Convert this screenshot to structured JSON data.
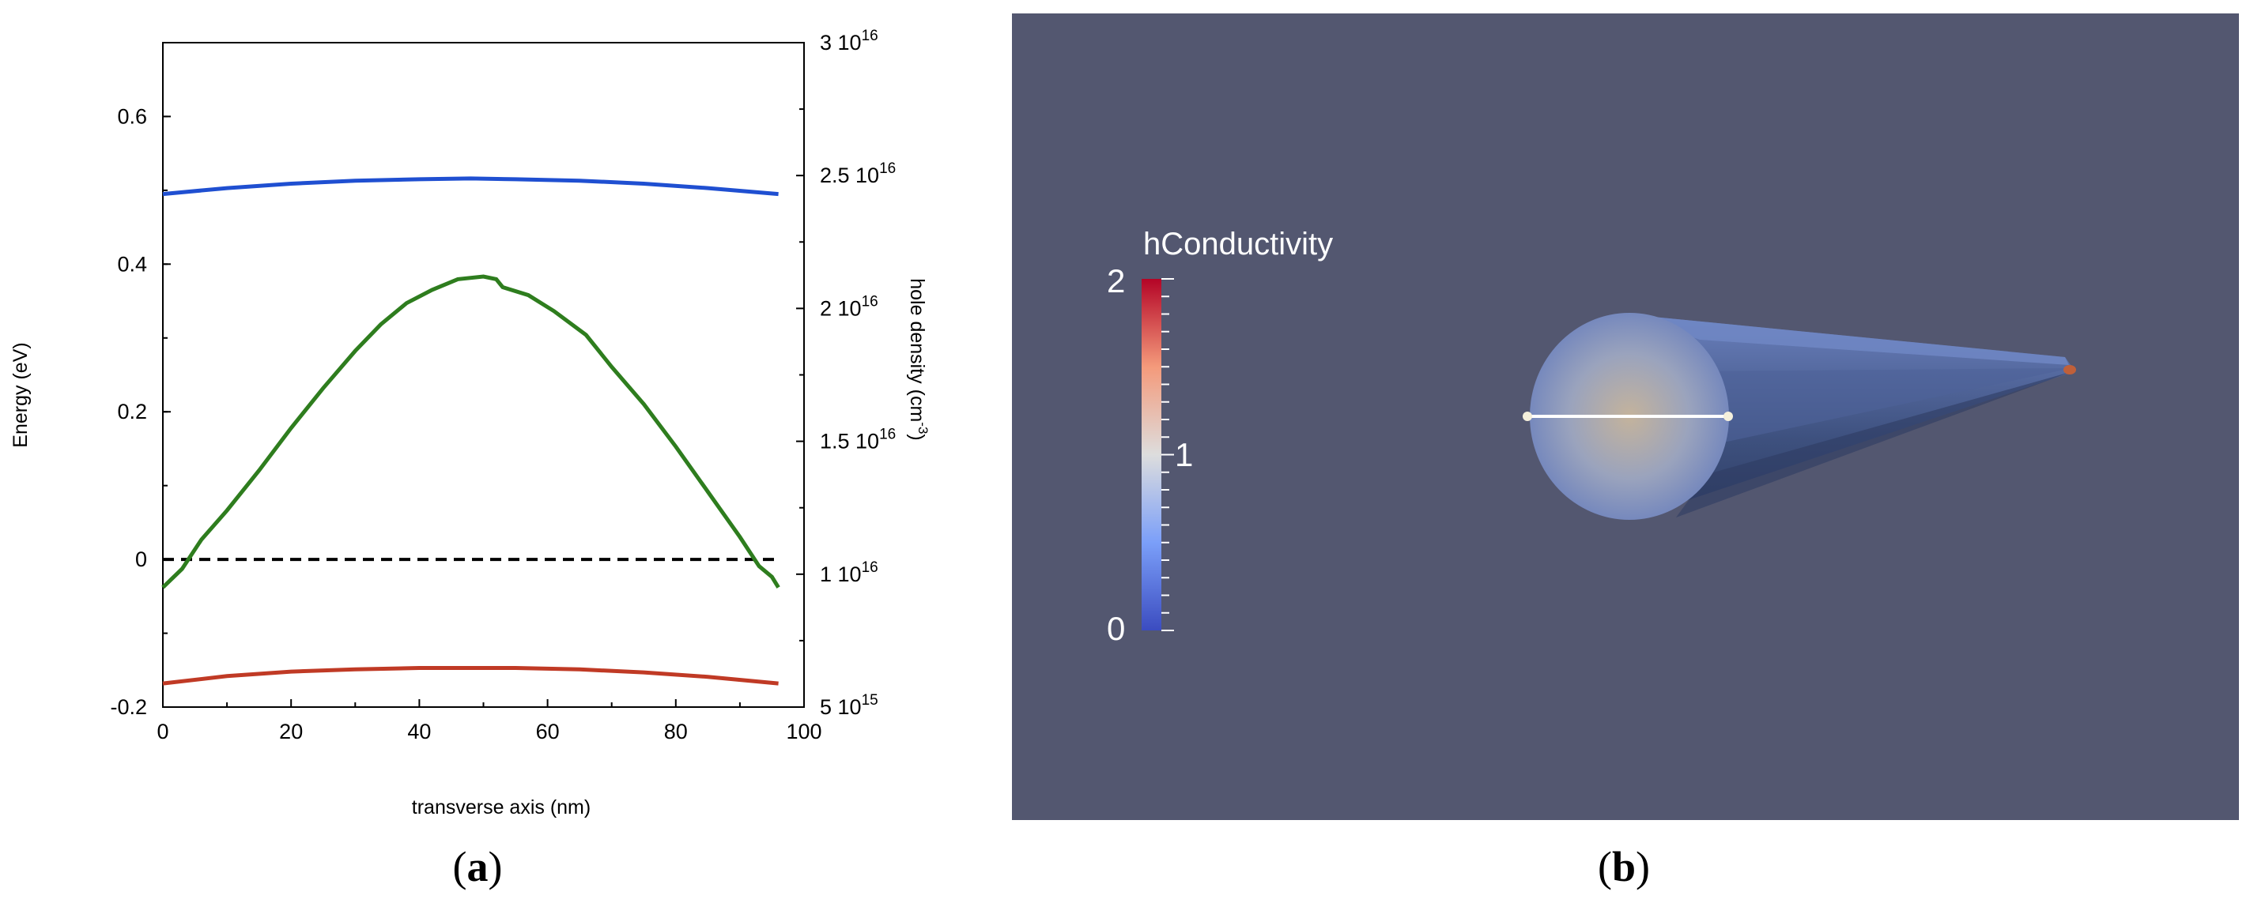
{
  "chart_data": {
    "type": "line",
    "panel_a": {
      "xlabel": "transverse axis (nm)",
      "ylabel": "Energy (eV)",
      "y2label_main": "hole density (cm",
      "y2label_exp": "-3",
      "y2label_close": ")",
      "xlim": [
        0,
        100
      ],
      "ylim": [
        -0.2,
        0.7
      ],
      "y2lim": [
        5000000000000000.0,
        3e+16
      ],
      "xticks": [
        "0",
        "20",
        "40",
        "60",
        "80",
        "100"
      ],
      "yticks": [
        "-0.2",
        "0",
        "0.2",
        "0.4",
        "0.6"
      ],
      "y2ticks": [
        {
          "mant": "5 10",
          "exp": "15"
        },
        {
          "mant": "1 10",
          "exp": "16"
        },
        {
          "mant": "1.5 10",
          "exp": "16"
        },
        {
          "mant": "2 10",
          "exp": "16"
        },
        {
          "mant": "2.5 10",
          "exp": "16"
        },
        {
          "mant": "3 10",
          "exp": "16"
        }
      ],
      "grid": false,
      "series": [
        {
          "axis": "left",
          "color": "#1f4fd1",
          "style": "solid",
          "x": [
            0,
            10,
            20,
            30,
            40,
            48,
            55,
            65,
            75,
            85,
            96
          ],
          "y": [
            0.495,
            0.503,
            0.509,
            0.513,
            0.515,
            0.516,
            0.515,
            0.513,
            0.509,
            0.503,
            0.495
          ]
        },
        {
          "axis": "left",
          "color": "#c03a25",
          "style": "solid",
          "x": [
            0,
            10,
            20,
            30,
            40,
            48,
            55,
            65,
            75,
            85,
            96
          ],
          "y": [
            -0.168,
            -0.158,
            -0.152,
            -0.149,
            -0.147,
            -0.147,
            -0.147,
            -0.149,
            -0.153,
            -0.159,
            -0.168
          ]
        },
        {
          "axis": "left",
          "color": "#000000",
          "style": "dashed",
          "x": [
            0,
            96
          ],
          "y": [
            0,
            0
          ]
        },
        {
          "axis": "right",
          "color": "#2e7d1e",
          "style": "solid",
          "x": [
            0,
            3,
            6,
            10,
            15,
            20,
            25,
            30,
            34,
            38,
            42,
            46,
            50,
            52,
            53,
            57,
            61,
            66,
            70,
            75,
            80,
            85,
            90,
            93,
            95,
            96
          ],
          "y": [
            9500000000000000.0,
            1.02e+16,
            1.13e+16,
            1.24e+16,
            1.39e+16,
            1.55e+16,
            1.7e+16,
            1.84e+16,
            1.94e+16,
            2.02e+16,
            2.07e+16,
            2.11e+16,
            2.12e+16,
            2.11e+16,
            2.08e+16,
            2.05e+16,
            1.99e+16,
            1.9e+16,
            1.78e+16,
            1.64e+16,
            1.48e+16,
            1.31e+16,
            1.14e+16,
            1.03e+16,
            9900000000000000.0,
            9500000000000000.0
          ]
        }
      ]
    }
  },
  "panel_b": {
    "background": "#535770",
    "colorbar_title": "hConductivity",
    "colorbar_ticks": [
      "2",
      "1",
      "0"
    ],
    "colormap": [
      "#3b4cc0",
      "#dddddd",
      "#b40426"
    ]
  },
  "captions": {
    "a": {
      "open": "(",
      "letter": "a",
      "close": ")"
    },
    "b": {
      "open": "(",
      "letter": "b",
      "close": ")"
    }
  }
}
